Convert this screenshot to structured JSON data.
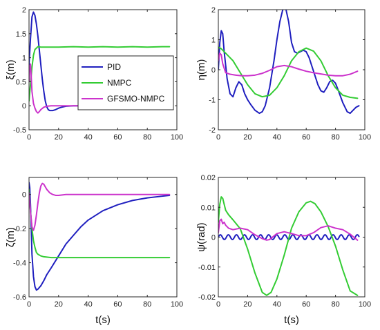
{
  "legend": {
    "entries": [
      {
        "label": "PID",
        "color": "#1f1fbf"
      },
      {
        "label": "NMPC",
        "color": "#33cc33"
      },
      {
        "label": "GFSMO-NMPC",
        "color": "#cc33cc"
      }
    ]
  },
  "chart_data": [
    {
      "type": "line",
      "ylabel": "ξ(m)",
      "xlabel": "",
      "xlim": [
        0,
        100
      ],
      "ylim": [
        -0.5,
        2
      ],
      "xticks": [
        0,
        20,
        40,
        60,
        80,
        100
      ],
      "yticks": [
        -0.5,
        0,
        0.5,
        1,
        1.5,
        2
      ],
      "ytick_labels": [
        "-0.5",
        "0",
        "0.5",
        "1",
        "1.5",
        "2"
      ],
      "series": [
        {
          "name": "PID",
          "color": "#1f1fbf",
          "x": [
            0,
            1,
            2,
            3,
            4,
            5,
            6,
            7,
            8,
            9,
            10,
            11,
            12,
            13,
            14,
            16,
            18,
            20,
            22,
            25,
            30,
            35,
            40,
            45,
            50,
            60,
            70,
            80,
            90,
            95
          ],
          "y": [
            0.85,
            1.4,
            1.85,
            1.95,
            1.88,
            1.7,
            1.45,
            1.15,
            0.85,
            0.55,
            0.3,
            0.1,
            -0.02,
            -0.08,
            -0.1,
            -0.1,
            -0.08,
            -0.05,
            -0.03,
            -0.01,
            0,
            0,
            0,
            0,
            0,
            0,
            0,
            0,
            0,
            0
          ]
        },
        {
          "name": "NMPC",
          "color": "#33cc33",
          "x": [
            0,
            1,
            2,
            3,
            4,
            5,
            6,
            8,
            10,
            15,
            20,
            30,
            40,
            50,
            60,
            70,
            80,
            90,
            95
          ],
          "y": [
            0.1,
            0.45,
            0.8,
            1.05,
            1.17,
            1.2,
            1.23,
            1.22,
            1.22,
            1.22,
            1.22,
            1.23,
            1.22,
            1.23,
            1.22,
            1.23,
            1.22,
            1.23,
            1.23
          ]
        },
        {
          "name": "GFSMO-NMPC",
          "color": "#cc33cc",
          "x": [
            0,
            0.5,
            1,
            1.5,
            2,
            3,
            4,
            5,
            6,
            7,
            8,
            10,
            12,
            15,
            20,
            30,
            40,
            50,
            60,
            70,
            80,
            90,
            95
          ],
          "y": [
            0.5,
            0.82,
            0.87,
            0.6,
            0.3,
            0.05,
            -0.05,
            -0.12,
            -0.15,
            -0.12,
            -0.08,
            -0.03,
            -0.01,
            0,
            0,
            0,
            0,
            0,
            0,
            0,
            0,
            0,
            0
          ]
        }
      ]
    },
    {
      "type": "line",
      "ylabel": "η(m)",
      "xlabel": "",
      "xlim": [
        0,
        100
      ],
      "ylim": [
        -2,
        2
      ],
      "xticks": [
        0,
        20,
        40,
        60,
        80,
        100
      ],
      "yticks": [
        -2,
        -1,
        0,
        1,
        2
      ],
      "ytick_labels": [
        "-2",
        "-1",
        "0",
        "1",
        "2"
      ],
      "series": [
        {
          "name": "PID",
          "color": "#1f1fbf",
          "x": [
            0,
            1,
            2,
            3,
            4,
            6,
            8,
            10,
            12,
            14,
            16,
            18,
            20,
            22,
            25,
            28,
            30,
            32,
            35,
            38,
            40,
            42,
            44,
            46,
            48,
            50,
            52,
            54,
            56,
            58,
            60,
            62,
            64,
            66,
            68,
            70,
            72,
            74,
            76,
            78,
            80,
            82,
            85,
            88,
            90,
            92,
            94,
            96
          ],
          "y": [
            0,
            0.9,
            1.3,
            1.2,
            0.6,
            -0.3,
            -0.8,
            -0.9,
            -0.6,
            -0.4,
            -0.5,
            -0.8,
            -1.0,
            -1.15,
            -1.35,
            -1.45,
            -1.4,
            -1.2,
            -0.6,
            0.3,
            1.0,
            1.6,
            2.0,
            2.05,
            1.6,
            0.9,
            0.6,
            0.55,
            0.6,
            0.65,
            0.6,
            0.4,
            0.1,
            -0.2,
            -0.5,
            -0.7,
            -0.75,
            -0.6,
            -0.4,
            -0.35,
            -0.45,
            -0.7,
            -1.1,
            -1.4,
            -1.45,
            -1.35,
            -1.25,
            -1.2
          ]
        },
        {
          "name": "NMPC",
          "color": "#33cc33",
          "x": [
            0,
            2,
            5,
            10,
            15,
            20,
            25,
            30,
            35,
            40,
            45,
            50,
            55,
            60,
            65,
            70,
            75,
            80,
            85,
            90,
            95
          ],
          "y": [
            0.75,
            0.7,
            0.55,
            0.3,
            -0.1,
            -0.5,
            -0.8,
            -0.9,
            -0.85,
            -0.6,
            -0.2,
            0.3,
            0.6,
            0.72,
            0.62,
            0.3,
            -0.2,
            -0.6,
            -0.85,
            -0.92,
            -0.95
          ]
        },
        {
          "name": "GFSMO-NMPC",
          "color": "#cc33cc",
          "x": [
            0,
            1,
            2,
            3,
            5,
            8,
            12,
            16,
            20,
            25,
            30,
            35,
            40,
            45,
            50,
            55,
            60,
            65,
            70,
            75,
            80,
            85,
            90,
            95
          ],
          "y": [
            0.3,
            0.55,
            0.5,
            0.2,
            -0.1,
            -0.15,
            -0.18,
            -0.2,
            -0.2,
            -0.18,
            -0.12,
            -0.02,
            0.1,
            0.14,
            0.1,
            0.02,
            -0.05,
            -0.1,
            -0.14,
            -0.18,
            -0.2,
            -0.2,
            -0.15,
            -0.05
          ]
        }
      ]
    },
    {
      "type": "line",
      "ylabel": "ζ(m)",
      "xlabel": "t(s)",
      "xlim": [
        0,
        100
      ],
      "ylim": [
        -0.6,
        0.1
      ],
      "xticks": [
        0,
        20,
        40,
        60,
        80,
        100
      ],
      "yticks": [
        -0.6,
        -0.4,
        -0.2,
        0
      ],
      "ytick_labels": [
        "-0.6",
        "-0.4",
        "-0.2",
        "0"
      ],
      "series": [
        {
          "name": "PID",
          "color": "#1f1fbf",
          "x": [
            0,
            0.5,
            1,
            1.5,
            2,
            3,
            4,
            5,
            6,
            8,
            10,
            12,
            15,
            20,
            25,
            30,
            35,
            40,
            50,
            60,
            70,
            80,
            90,
            95
          ],
          "y": [
            0.07,
            0.04,
            -0.06,
            -0.2,
            -0.35,
            -0.48,
            -0.54,
            -0.56,
            -0.555,
            -0.535,
            -0.505,
            -0.47,
            -0.43,
            -0.36,
            -0.29,
            -0.24,
            -0.19,
            -0.15,
            -0.095,
            -0.06,
            -0.035,
            -0.02,
            -0.01,
            -0.005
          ]
        },
        {
          "name": "NMPC",
          "color": "#33cc33",
          "x": [
            0,
            1,
            2,
            3,
            4,
            5,
            6,
            8,
            10,
            15,
            20,
            30,
            40,
            60,
            80,
            95
          ],
          "y": [
            0.03,
            -0.1,
            -0.2,
            -0.27,
            -0.31,
            -0.34,
            -0.35,
            -0.36,
            -0.365,
            -0.37,
            -0.37,
            -0.37,
            -0.37,
            -0.37,
            -0.37,
            -0.37
          ]
        },
        {
          "name": "GFSMO-NMPC",
          "color": "#cc33cc",
          "x": [
            0,
            1,
            2,
            3,
            4,
            5,
            6,
            7,
            8,
            9,
            10,
            11,
            12,
            14,
            16,
            18,
            20,
            25,
            30,
            40,
            60,
            80,
            95
          ],
          "y": [
            0.01,
            -0.1,
            -0.19,
            -0.21,
            -0.18,
            -0.12,
            -0.05,
            0.01,
            0.05,
            0.065,
            0.06,
            0.045,
            0.03,
            0.01,
            0,
            -0.005,
            -0.005,
            0,
            0,
            0,
            0,
            0,
            0
          ]
        }
      ]
    },
    {
      "type": "line",
      "ylabel": "ψ(rad)",
      "xlabel": "t(s)",
      "xlim": [
        0,
        100
      ],
      "ylim": [
        -0.02,
        0.02
      ],
      "xticks": [
        0,
        20,
        40,
        60,
        80,
        100
      ],
      "yticks": [
        -0.02,
        -0.01,
        0,
        0.01,
        0.02
      ],
      "ytick_labels": [
        "-0.02",
        "-0.01",
        "0",
        "0.01",
        "0.02"
      ],
      "series": [
        {
          "name": "PID",
          "color": "#1f1fbf",
          "kind": "sine",
          "amplitude": 0.0008,
          "period": 5.5,
          "x_start": 0,
          "x_end": 96
        },
        {
          "name": "NMPC",
          "color": "#33cc33",
          "x": [
            0,
            1,
            2,
            3,
            4,
            5,
            7,
            10,
            15,
            20,
            25,
            30,
            33,
            36,
            40,
            45,
            50,
            55,
            60,
            63,
            66,
            70,
            75,
            80,
            85,
            90,
            95
          ],
          "y": [
            0.005,
            0.011,
            0.0135,
            0.013,
            0.011,
            0.009,
            0.0075,
            0.0058,
            0.0028,
            -0.004,
            -0.012,
            -0.0185,
            -0.0195,
            -0.0185,
            -0.014,
            -0.006,
            0.003,
            0.0085,
            0.0115,
            0.012,
            0.0112,
            0.0085,
            0.0035,
            -0.003,
            -0.011,
            -0.018,
            -0.0195
          ]
        },
        {
          "name": "GFSMO-NMPC",
          "color": "#cc33cc",
          "x": [
            0,
            1,
            2,
            3,
            4,
            5,
            7,
            10,
            15,
            20,
            25,
            30,
            33,
            35,
            40,
            45,
            50,
            55,
            60,
            65,
            70,
            75,
            80,
            85,
            90,
            95
          ],
          "y": [
            0.0015,
            0.0055,
            0.006,
            0.0045,
            0.005,
            0.004,
            0.003,
            0.0025,
            0.003,
            0.0025,
            0.0008,
            -0.0005,
            -0.001,
            -0.0008,
            0.0012,
            0.0018,
            0.0012,
            0.0005,
            0.0005,
            0.0015,
            0.0032,
            0.0038,
            0.003,
            0.0025,
            0.001,
            -0.001
          ]
        }
      ]
    }
  ]
}
